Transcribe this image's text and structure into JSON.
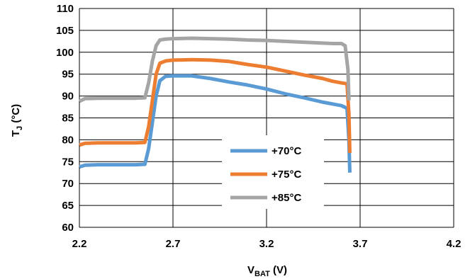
{
  "chart_data": {
    "type": "line",
    "xlabel": {
      "main": "V",
      "sub": "BAT",
      "rest": " (V)"
    },
    "ylabel": {
      "main": "T",
      "sub": "J",
      "rest": " (°C)"
    },
    "xlim": [
      2.2,
      4.2
    ],
    "ylim": [
      60,
      110
    ],
    "x_ticks": [
      "2.2",
      "2.7",
      "3.2",
      "3.7",
      "4.2"
    ],
    "y_ticks": [
      "60",
      "65",
      "70",
      "75",
      "80",
      "85",
      "90",
      "95",
      "100",
      "105",
      "110"
    ],
    "grid": "both",
    "legend_position": "center",
    "series": [
      {
        "name": "+70°C",
        "color": "#5B9BD5",
        "points": [
          [
            2.2,
            73.8
          ],
          [
            2.23,
            74.2
          ],
          [
            2.3,
            74.3
          ],
          [
            2.4,
            74.3
          ],
          [
            2.5,
            74.3
          ],
          [
            2.55,
            74.4
          ],
          [
            2.57,
            78.0
          ],
          [
            2.59,
            84.0
          ],
          [
            2.61,
            90.0
          ],
          [
            2.63,
            93.5
          ],
          [
            2.66,
            94.5
          ],
          [
            2.7,
            94.6
          ],
          [
            2.8,
            94.6
          ],
          [
            2.9,
            94.0
          ],
          [
            3.0,
            93.2
          ],
          [
            3.1,
            92.5
          ],
          [
            3.2,
            91.6
          ],
          [
            3.3,
            90.5
          ],
          [
            3.4,
            89.6
          ],
          [
            3.5,
            88.6
          ],
          [
            3.55,
            88.2
          ],
          [
            3.6,
            87.8
          ],
          [
            3.63,
            87.2
          ],
          [
            3.64,
            80.0
          ],
          [
            3.645,
            72.5
          ]
        ]
      },
      {
        "name": "+75°C",
        "color": "#ED7D31",
        "points": [
          [
            2.2,
            78.8
          ],
          [
            2.23,
            79.2
          ],
          [
            2.3,
            79.3
          ],
          [
            2.4,
            79.3
          ],
          [
            2.5,
            79.3
          ],
          [
            2.55,
            79.4
          ],
          [
            2.57,
            83.0
          ],
          [
            2.59,
            89.0
          ],
          [
            2.61,
            95.0
          ],
          [
            2.63,
            97.5
          ],
          [
            2.66,
            98.0
          ],
          [
            2.7,
            98.2
          ],
          [
            2.8,
            98.3
          ],
          [
            2.9,
            98.2
          ],
          [
            3.0,
            97.9
          ],
          [
            3.1,
            97.2
          ],
          [
            3.2,
            96.6
          ],
          [
            3.3,
            95.7
          ],
          [
            3.4,
            94.8
          ],
          [
            3.5,
            94.0
          ],
          [
            3.55,
            93.4
          ],
          [
            3.6,
            93.0
          ],
          [
            3.63,
            92.8
          ],
          [
            3.64,
            86.0
          ],
          [
            3.645,
            77.0
          ]
        ]
      },
      {
        "name": "+85°C",
        "color": "#A5A5A5",
        "points": [
          [
            2.2,
            88.8
          ],
          [
            2.23,
            89.4
          ],
          [
            2.3,
            89.5
          ],
          [
            2.4,
            89.5
          ],
          [
            2.5,
            89.5
          ],
          [
            2.55,
            89.6
          ],
          [
            2.57,
            93.0
          ],
          [
            2.59,
            98.0
          ],
          [
            2.61,
            101.5
          ],
          [
            2.63,
            102.8
          ],
          [
            2.66,
            103.0
          ],
          [
            2.7,
            103.1
          ],
          [
            2.8,
            103.2
          ],
          [
            2.9,
            103.1
          ],
          [
            3.0,
            103.0
          ],
          [
            3.1,
            102.8
          ],
          [
            3.2,
            102.7
          ],
          [
            3.3,
            102.5
          ],
          [
            3.4,
            102.3
          ],
          [
            3.5,
            102.1
          ],
          [
            3.55,
            102.0
          ],
          [
            3.6,
            102.0
          ],
          [
            3.62,
            101.5
          ],
          [
            3.635,
            96.0
          ],
          [
            3.64,
            89.0
          ]
        ]
      }
    ]
  }
}
